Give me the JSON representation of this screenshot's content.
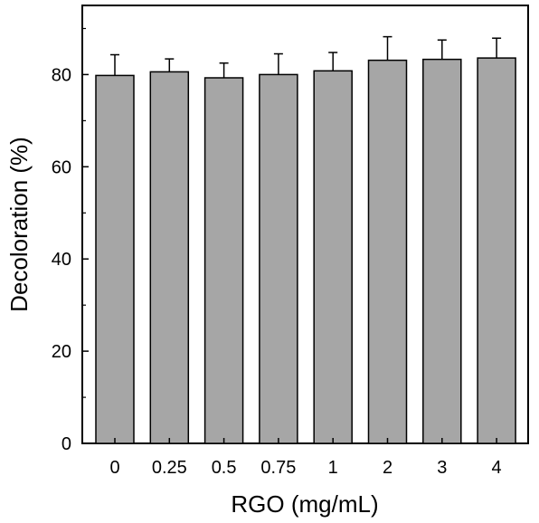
{
  "chart_data": {
    "type": "bar",
    "title": "",
    "xlabel": "RGO (mg/mL)",
    "ylabel": "Decoloration (%)",
    "categories": [
      "0",
      "0.25",
      "0.5",
      "0.75",
      "1",
      "2",
      "3",
      "4"
    ],
    "values": [
      79.8,
      80.6,
      79.3,
      80.0,
      80.8,
      83.1,
      83.3,
      83.6
    ],
    "error_plus": [
      4.5,
      2.8,
      3.2,
      4.5,
      4.0,
      5.1,
      4.2,
      4.3
    ],
    "ylim": [
      0,
      95
    ],
    "yticks": [
      0,
      20,
      40,
      60,
      80
    ],
    "grid": false,
    "legend": "none",
    "colors": {
      "bar_fill": "#a6a6a6",
      "bar_stroke": "#000000",
      "axis": "#000000"
    }
  }
}
